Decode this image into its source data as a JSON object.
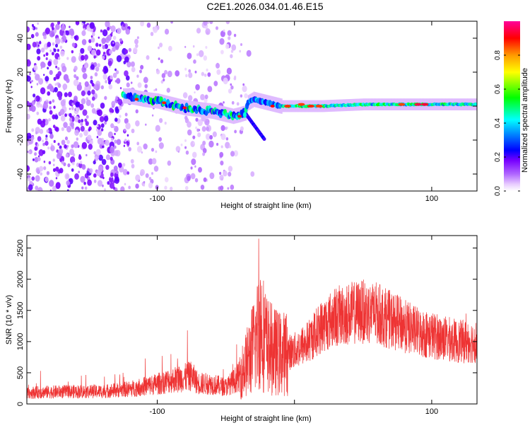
{
  "title": "C2E1.2026.034.01.46.E15",
  "chart_data": [
    {
      "type": "heatmap",
      "xlabel": "Height of straight line (km)",
      "ylabel": "Frequency (Hz)",
      "xlim": [
        -195,
        133
      ],
      "ylim": [
        -50,
        50
      ],
      "x_ticks": [
        -100,
        0,
        100
      ],
      "x_tick_labels": [
        "-100",
        "",
        "100"
      ],
      "y_ticks": [
        -40,
        -20,
        0,
        20,
        40
      ],
      "y_tick_labels": [
        "-40",
        "-20",
        "0",
        "20",
        "40"
      ],
      "colorbar": {
        "label": "Normalized spectral amplitude",
        "range": [
          0,
          1
        ],
        "ticks": [
          0.0,
          0.2,
          0.4,
          0.6,
          0.8
        ],
        "tick_labels": [
          "0.0",
          "0.2",
          "0.4",
          "0.6",
          "0.8"
        ],
        "colors": [
          "#ffffff",
          "#e8ccff",
          "#9900ff",
          "#0000ff",
          "#00ffff",
          "#00ff00",
          "#ffff00",
          "#ff8800",
          "#ff0000",
          "#ff0099"
        ]
      },
      "signal_track": {
        "x": [
          -122,
          -110,
          -100,
          -90,
          -80,
          -70,
          -60,
          -50,
          -45,
          -40,
          -36,
          -34,
          -30,
          -25,
          -15,
          -10,
          0,
          20,
          50,
          80,
          100,
          133
        ],
        "y": [
          6,
          4,
          3,
          1,
          -1,
          -2,
          -3,
          -5,
          -6,
          -5,
          -4,
          2,
          4,
          3,
          1,
          0,
          0,
          0,
          1,
          1,
          1,
          1
        ]
      },
      "grid": false
    },
    {
      "type": "line",
      "xlabel": "Height of straight line (km)",
      "ylabel": "SNR (10 * v/v)",
      "xlim": [
        -195,
        133
      ],
      "ylim": [
        0,
        2700
      ],
      "x_ticks": [
        -100,
        0,
        100
      ],
      "x_tick_labels": [
        "-100",
        "",
        "100"
      ],
      "y_ticks": [
        0,
        500,
        1000,
        1500,
        2000,
        2500
      ],
      "y_tick_labels": [
        "0",
        "500",
        "1000",
        "1500",
        "2000",
        "2500"
      ],
      "line_color": "#ee3333",
      "series": [
        {
          "x": [
            -195,
            -180,
            -160,
            -140,
            -120,
            -110,
            -100,
            -90,
            -80,
            -75,
            -70,
            -60,
            -50,
            -45,
            -40,
            -35,
            -30,
            -27,
            -25,
            -20,
            -15,
            -10,
            0,
            10,
            20,
            30,
            40,
            50,
            60,
            70,
            80,
            90,
            100,
            110,
            120,
            133
          ],
          "values": [
            180,
            190,
            200,
            200,
            240,
            280,
            320,
            380,
            420,
            450,
            330,
            320,
            270,
            350,
            450,
            650,
            900,
            1100,
            1300,
            950,
            850,
            800,
            850,
            1000,
            1250,
            1400,
            1450,
            1480,
            1450,
            1350,
            1250,
            1150,
            1100,
            1050,
            1000,
            1000
          ],
          "spikes": [
            {
              "x": -26,
              "value": 2650
            },
            {
              "x": -24,
              "value": 1700
            },
            {
              "x": -19,
              "value": 1050
            },
            {
              "x": -78,
              "value": 1180
            },
            {
              "x": -90,
              "value": 800
            },
            {
              "x": -45,
              "value": 640
            },
            {
              "x": -185,
              "value": 530
            },
            {
              "x": 125,
              "value": 1450
            },
            {
              "x": 45,
              "value": 1850
            },
            {
              "x": 58,
              "value": 1800
            }
          ]
        }
      ],
      "grid": false
    }
  ]
}
